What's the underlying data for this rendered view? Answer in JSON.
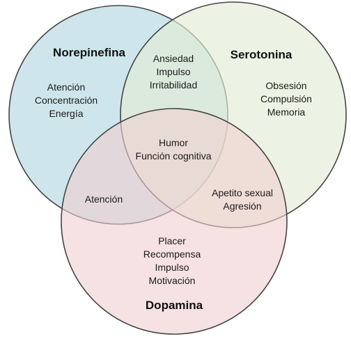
{
  "colors": {
    "norepinefina_fill": "#c2e0e6",
    "serotonina_fill": "#e4ecd5",
    "dopamina_fill": "#f0cfd1",
    "outline": "#444444"
  },
  "sets": {
    "norepinefina": {
      "title": "Norepinefina",
      "items": [
        "Atención",
        "Concentración",
        "Energía"
      ]
    },
    "serotonina": {
      "title": "Serotonina",
      "items": [
        "Obsesión",
        "Compulsión",
        "Memoria"
      ]
    },
    "dopamina": {
      "title": "Dopamina",
      "items": [
        "Placer",
        "Recompensa",
        "Impulso",
        "Motivación"
      ]
    }
  },
  "intersections": {
    "norepinefina_serotonina": [
      "Ansiedad",
      "Impulso",
      "Irritabilidad"
    ],
    "norepinefina_dopamina": [
      "Atención"
    ],
    "serotonina_dopamina": [
      "Apetito sexual",
      "Agresión"
    ],
    "all": [
      "Humor",
      "Función cognitiva"
    ]
  }
}
